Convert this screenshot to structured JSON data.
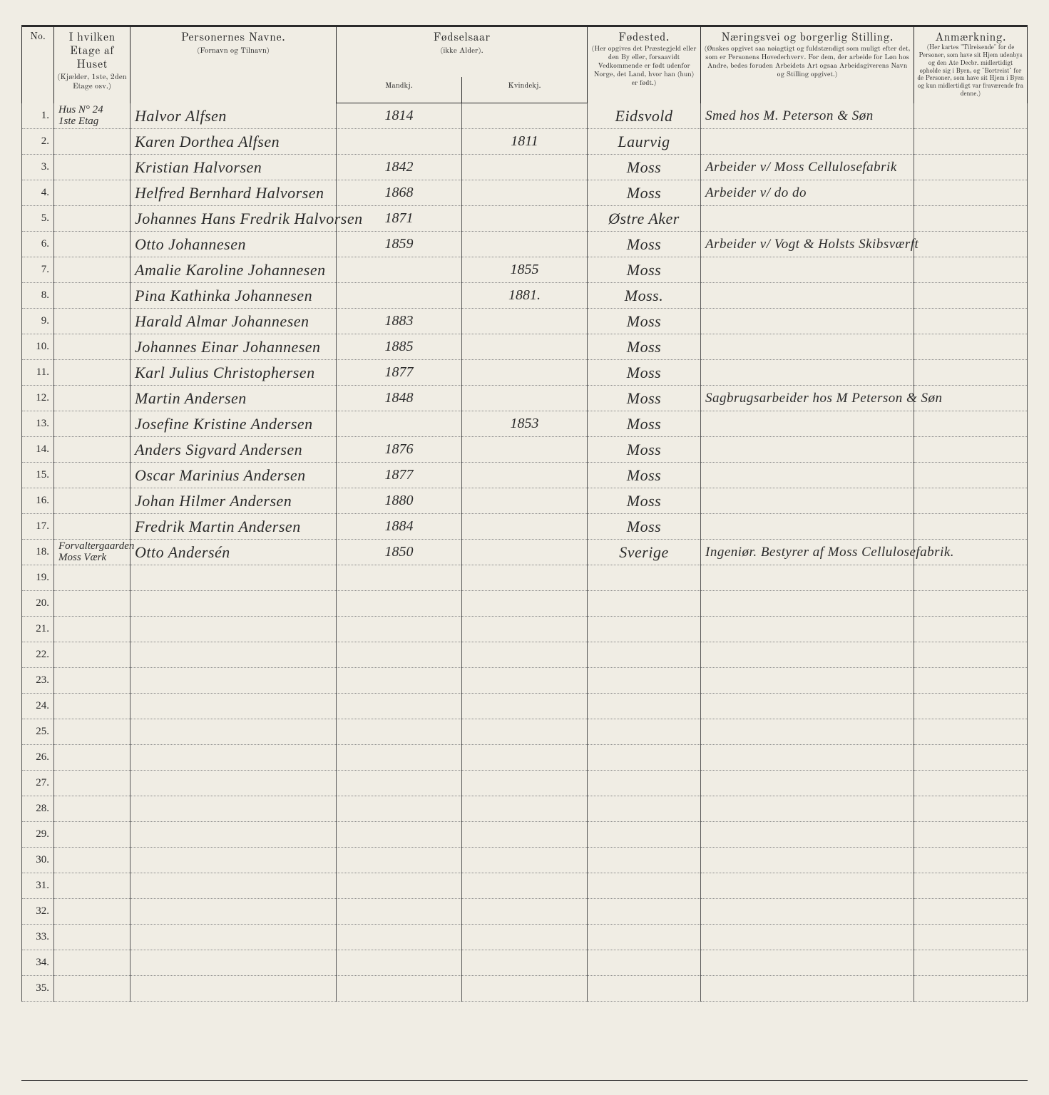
{
  "headers": {
    "no": "No.",
    "etage": "I hvilken Etage af Huset",
    "etage_sub": "(Kjælder, 1ste, 2den Etage osv.)",
    "name": "Personernes Navne.",
    "name_sub": "(Fornavn og Tilnavn)",
    "birthyear": "Fødselsaar",
    "birthyear_sub": "(ikke Alder).",
    "male": "Mandkj.",
    "female": "Kvindekj.",
    "birthplace": "Fødested.",
    "birthplace_sub": "(Her opgives det Præstegjeld eller den By eller, forsaavidt Vedkommende er født udenfor Norge, det Land, hvor han (hun) er født.)",
    "occupation": "Næringsvei og borgerlig Stilling.",
    "occupation_sub": "(Ønskes opgivet saa nøiagtigt og fuldstændigt som muligt efter det, som er Personens Hovederhverv. For dem, der arbeide for Løn hos Andre, bedes foruden Arbeidets Art ogsaa Arbeidsgiverens Navn og Stilling opgivet.)",
    "remark": "Anmærkning.",
    "remark_sub": "(Her kartes \"Tilreisende\" for de Personer, som have sit Hjem udenbys og den Ate Decbr. midlertidigt opholde sig i Byen, og \"Bortreist\" for de Personer, som have sit Hjem i Byen og kun midlertidigt var fraværende fra denne.)"
  },
  "rows": [
    {
      "no": "1.",
      "etage": "Hus N° 24\n1ste Etag",
      "name": "Halvor Alfsen",
      "male": "1814",
      "female": "",
      "birthplace": "Eidsvold",
      "occupation": "Smed hos M. Peterson & Søn"
    },
    {
      "no": "2.",
      "etage": "",
      "name": "Karen Dorthea Alfsen",
      "male": "",
      "female": "1811",
      "birthplace": "Laurvig",
      "occupation": ""
    },
    {
      "no": "3.",
      "etage": "",
      "name": "Kristian Halvorsen",
      "male": "1842",
      "female": "",
      "birthplace": "Moss",
      "occupation": "Arbeider v/ Moss Cellulosefabrik"
    },
    {
      "no": "4.",
      "etage": "",
      "name": "Helfred Bernhard Halvorsen",
      "male": "1868",
      "female": "",
      "birthplace": "Moss",
      "occupation": "Arbeider v/   do         do"
    },
    {
      "no": "5.",
      "etage": "",
      "name": "Johannes Hans Fredrik Halvorsen",
      "male": "1871",
      "female": "",
      "birthplace": "Østre Aker",
      "occupation": ""
    },
    {
      "no": "6.",
      "etage": "",
      "name": "Otto Johannesen",
      "male": "1859",
      "female": "",
      "birthplace": "Moss",
      "occupation": "Arbeider v/ Vogt & Holsts Skibsværft"
    },
    {
      "no": "7.",
      "etage": "",
      "name": "Amalie Karoline Johannesen",
      "male": "",
      "female": "1855",
      "birthplace": "Moss",
      "occupation": ""
    },
    {
      "no": "8.",
      "etage": "",
      "name": "Pina Kathinka Johannesen",
      "male": "",
      "female": "1881.",
      "birthplace": "Moss.",
      "occupation": ""
    },
    {
      "no": "9.",
      "etage": "",
      "name": "Harald Almar Johannesen",
      "male": "1883",
      "female": "",
      "birthplace": "Moss",
      "occupation": ""
    },
    {
      "no": "10.",
      "etage": "",
      "name": "Johannes Einar Johannesen",
      "male": "1885",
      "female": "",
      "birthplace": "Moss",
      "occupation": ""
    },
    {
      "no": "11.",
      "etage": "",
      "name": "Karl Julius Christophersen",
      "male": "1877",
      "female": "",
      "birthplace": "Moss",
      "occupation": ""
    },
    {
      "no": "12.",
      "etage": "",
      "name": "Martin Andersen",
      "male": "1848",
      "female": "",
      "birthplace": "Moss",
      "occupation": "Sagbrugsarbeider hos M Peterson & Søn"
    },
    {
      "no": "13.",
      "etage": "",
      "name": "Josefine Kristine Andersen",
      "male": "",
      "female": "1853",
      "birthplace": "Moss",
      "occupation": ""
    },
    {
      "no": "14.",
      "etage": "",
      "name": "Anders Sigvard Andersen",
      "male": "1876",
      "female": "",
      "birthplace": "Moss",
      "occupation": ""
    },
    {
      "no": "15.",
      "etage": "",
      "name": "Oscar Marinius Andersen",
      "male": "1877",
      "female": "",
      "birthplace": "Moss",
      "occupation": ""
    },
    {
      "no": "16.",
      "etage": "",
      "name": "Johan Hilmer Andersen",
      "male": "1880",
      "female": "",
      "birthplace": "Moss",
      "occupation": ""
    },
    {
      "no": "17.",
      "etage": "",
      "name": "Fredrik Martin Andersen",
      "male": "1884",
      "female": "",
      "birthplace": "Moss",
      "occupation": ""
    },
    {
      "no": "18.",
      "etage": "Forvaltergaarden\nMoss Værk",
      "name": "Otto Andersén",
      "male": "1850",
      "female": "",
      "birthplace": "Sverige",
      "occupation": "Ingeniør. Bestyrer af Moss Cellulosefabrik."
    },
    {
      "no": "19.",
      "etage": "",
      "name": "",
      "male": "",
      "female": "",
      "birthplace": "",
      "occupation": ""
    },
    {
      "no": "20.",
      "etage": "",
      "name": "",
      "male": "",
      "female": "",
      "birthplace": "",
      "occupation": ""
    },
    {
      "no": "21.",
      "etage": "",
      "name": "",
      "male": "",
      "female": "",
      "birthplace": "",
      "occupation": ""
    },
    {
      "no": "22.",
      "etage": "",
      "name": "",
      "male": "",
      "female": "",
      "birthplace": "",
      "occupation": ""
    },
    {
      "no": "23.",
      "etage": "",
      "name": "",
      "male": "",
      "female": "",
      "birthplace": "",
      "occupation": ""
    },
    {
      "no": "24.",
      "etage": "",
      "name": "",
      "male": "",
      "female": "",
      "birthplace": "",
      "occupation": ""
    },
    {
      "no": "25.",
      "etage": "",
      "name": "",
      "male": "",
      "female": "",
      "birthplace": "",
      "occupation": ""
    },
    {
      "no": "26.",
      "etage": "",
      "name": "",
      "male": "",
      "female": "",
      "birthplace": "",
      "occupation": ""
    },
    {
      "no": "27.",
      "etage": "",
      "name": "",
      "male": "",
      "female": "",
      "birthplace": "",
      "occupation": ""
    },
    {
      "no": "28.",
      "etage": "",
      "name": "",
      "male": "",
      "female": "",
      "birthplace": "",
      "occupation": ""
    },
    {
      "no": "29.",
      "etage": "",
      "name": "",
      "male": "",
      "female": "",
      "birthplace": "",
      "occupation": ""
    },
    {
      "no": "30.",
      "etage": "",
      "name": "",
      "male": "",
      "female": "",
      "birthplace": "",
      "occupation": ""
    },
    {
      "no": "31.",
      "etage": "",
      "name": "",
      "male": "",
      "female": "",
      "birthplace": "",
      "occupation": ""
    },
    {
      "no": "32.",
      "etage": "",
      "name": "",
      "male": "",
      "female": "",
      "birthplace": "",
      "occupation": ""
    },
    {
      "no": "33.",
      "etage": "",
      "name": "",
      "male": "",
      "female": "",
      "birthplace": "",
      "occupation": ""
    },
    {
      "no": "34.",
      "etage": "",
      "name": "",
      "male": "",
      "female": "",
      "birthplace": "",
      "occupation": ""
    },
    {
      "no": "35.",
      "etage": "",
      "name": "",
      "male": "",
      "female": "",
      "birthplace": "",
      "occupation": ""
    }
  ]
}
